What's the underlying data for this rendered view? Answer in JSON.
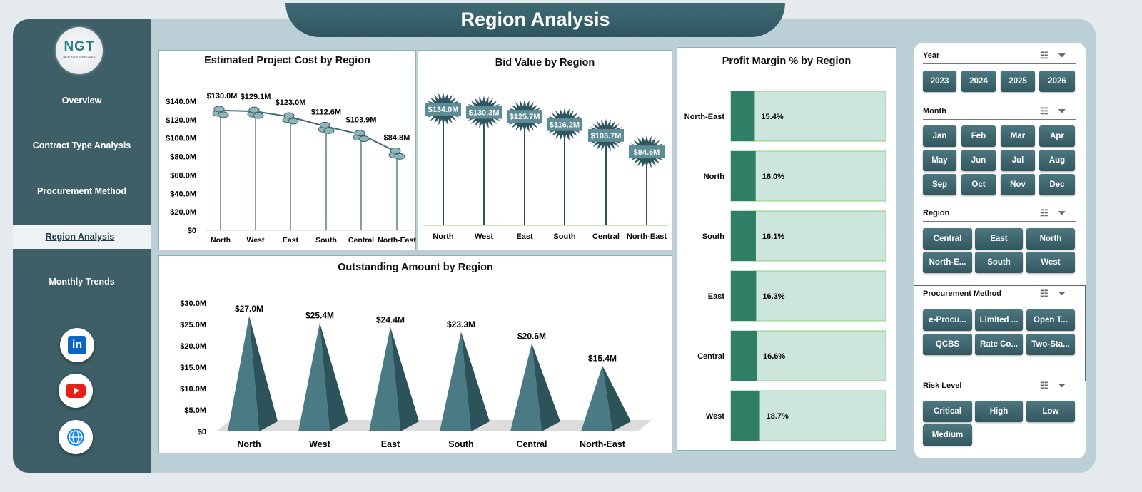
{
  "title": "Region Analysis",
  "logo": {
    "text": "NGT",
    "subtext": "NEXT GEN TEMPLATES"
  },
  "sidebar": {
    "items": [
      {
        "label": "Overview"
      },
      {
        "label": "Contract Type Analysis"
      },
      {
        "label": "Procurement Method"
      },
      {
        "label": "Region Analysis",
        "active": true
      },
      {
        "label": "Monthly Trends"
      }
    ],
    "social": [
      "linkedin-icon",
      "youtube-icon",
      "globe-icon"
    ]
  },
  "chart_data": [
    {
      "type": "line",
      "title": "Estimated Project Cost by Region",
      "categories": [
        "North",
        "West",
        "East",
        "South",
        "Central",
        "North-East"
      ],
      "values": [
        130.0,
        129.1,
        123.0,
        112.6,
        103.9,
        84.8
      ],
      "labels": [
        "$130.0M",
        "$129.1M",
        "$123.0M",
        "$112.6M",
        "$103.9M",
        "$84.8M"
      ],
      "yticks": [
        "$0",
        "$20.0M",
        "$40.0M",
        "$60.0M",
        "$80.0M",
        "$100.0M",
        "$120.0M",
        "$140.0M"
      ],
      "ylim": [
        0,
        140
      ],
      "unit": "$M",
      "color": "#3e6a72"
    },
    {
      "type": "bar",
      "title": "Bid Value by Region",
      "categories": [
        "North",
        "West",
        "East",
        "South",
        "Central",
        "North-East"
      ],
      "values": [
        134.0,
        130.3,
        125.7,
        116.2,
        103.7,
        84.6
      ],
      "labels": [
        "$134.0M",
        "$130.3M",
        "$125.7M",
        "$116.2M",
        "$103.7M",
        "$84.6M"
      ],
      "unit": "$M",
      "color": "#3e6a72"
    },
    {
      "type": "bar",
      "orientation": "horizontal",
      "title": "Profit Margin % by Region",
      "categories": [
        "North-East",
        "North",
        "South",
        "East",
        "Central",
        "West"
      ],
      "values": [
        15.4,
        16.0,
        16.1,
        16.3,
        16.6,
        18.7
      ],
      "labels": [
        "15.4%",
        "16.0%",
        "16.1%",
        "16.3%",
        "16.6%",
        "18.7%"
      ],
      "xlim": [
        0,
        100
      ],
      "color": "#2f7f66",
      "background": "#cde6dc"
    },
    {
      "type": "bar",
      "title": "Outstanding Amount by Region",
      "categories": [
        "North",
        "West",
        "East",
        "South",
        "Central",
        "North-East"
      ],
      "values": [
        27.0,
        25.4,
        24.4,
        23.3,
        20.6,
        15.4
      ],
      "labels": [
        "$27.0M",
        "$25.4M",
        "$24.4M",
        "$23.3M",
        "$20.6M",
        "$15.4M"
      ],
      "yticks": [
        "$0",
        "$5.0M",
        "$10.0M",
        "$15.0M",
        "$20.0M",
        "$25.0M",
        "$30.0M"
      ],
      "ylim": [
        0,
        30
      ],
      "unit": "$M",
      "color": "#4a7b84"
    }
  ],
  "slicers": [
    {
      "title": "Year",
      "items": [
        "2023",
        "2024",
        "2025",
        "2026"
      ]
    },
    {
      "title": "Month",
      "items": [
        "Jan",
        "Feb",
        "Mar",
        "Apr",
        "May",
        "Jun",
        "Jul",
        "Aug",
        "Sep",
        "Oct",
        "Nov",
        "Dec"
      ]
    },
    {
      "title": "Region",
      "items": [
        "Central",
        "East",
        "North",
        "North-E...",
        "South",
        "West"
      ]
    },
    {
      "title": "Procurement Method",
      "items": [
        "e-Procu...",
        "Limited ...",
        "Open T...",
        "QCBS",
        "Rate Co...",
        "Two-Sta..."
      ]
    },
    {
      "title": "Risk Level",
      "items": [
        "Critical",
        "High",
        "Low",
        "Medium"
      ]
    }
  ]
}
